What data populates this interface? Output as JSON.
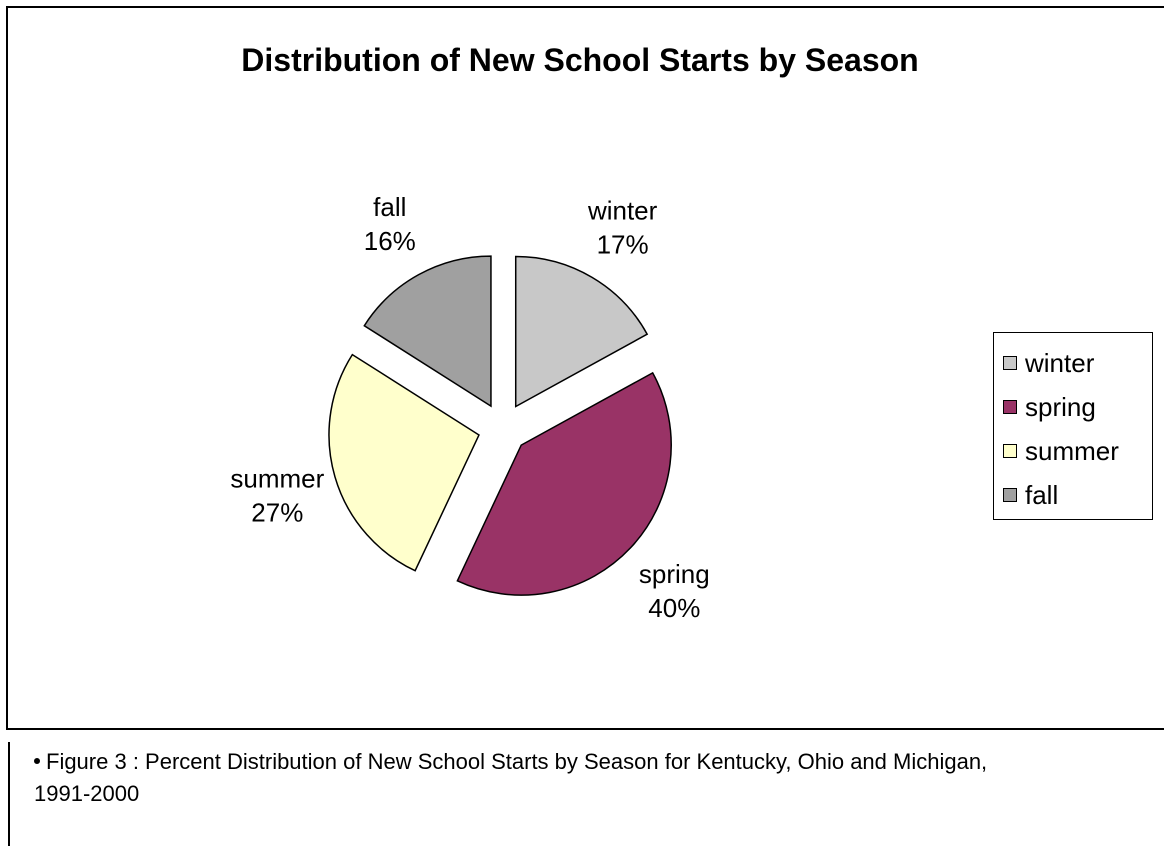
{
  "chart_data": {
    "type": "pie",
    "title": "Distribution of New School Starts by Season",
    "categories": [
      "winter",
      "spring",
      "summer",
      "fall"
    ],
    "values": [
      17,
      40,
      27,
      16
    ],
    "value_labels": [
      "17%",
      "40%",
      "27%",
      "16%"
    ],
    "colors": [
      "#c8c8c8",
      "#993366",
      "#ffffcc",
      "#a0a0a0"
    ],
    "exploded": true,
    "legend_placement": "right"
  },
  "caption": {
    "text": "Figure 3 : Percent Distribution of New School Starts by Season for Kentucky, Ohio and Michigan, 1991-2000"
  }
}
